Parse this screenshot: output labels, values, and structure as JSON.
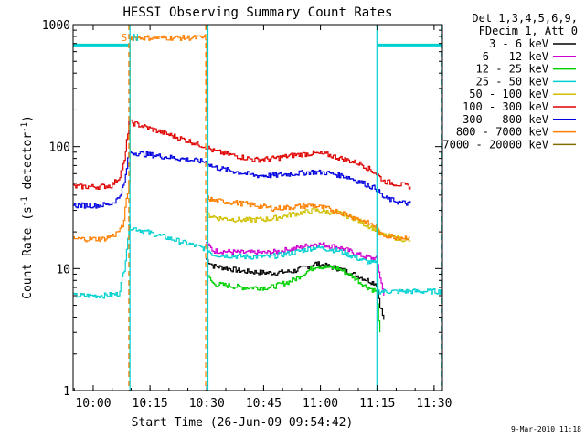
{
  "chart_data": {
    "type": "line",
    "title": "HESSI Observing Summary Count Rates",
    "xlabel": "Start Time (26-Jun-09 09:54:42)",
    "ylabel": "Count Rate (s-1 detector-1)",
    "ylabel_parts": {
      "main": "Count Rate (s",
      "sup1": "-1",
      "mid": " detector",
      "sup2": "-1",
      "end": ")"
    },
    "x_units": "minutes after 09:54:42",
    "xlim": [
      0,
      97.5
    ],
    "ylim": [
      1,
      1000
    ],
    "yscale": "log",
    "x_ticks": [
      {
        "label": "10:00",
        "value": 5.3
      },
      {
        "label": "10:15",
        "value": 20.3
      },
      {
        "label": "10:30",
        "value": 35.3
      },
      {
        "label": "10:45",
        "value": 50.3
      },
      {
        "label": "11:00",
        "value": 65.3
      },
      {
        "label": "11:15",
        "value": 80.3
      },
      {
        "label": "11:30",
        "value": 95.3
      }
    ],
    "y_ticks": [
      {
        "label": "1",
        "value": 1
      },
      {
        "label": "10",
        "value": 10
      },
      {
        "label": "100",
        "value": 100
      },
      {
        "label": "1000",
        "value": 1000
      }
    ],
    "legend_header": [
      "Det 1,3,4,5,6,9,",
      "FDecim 1, Att 0"
    ],
    "legend_position": "right",
    "series": [
      {
        "name": "3 - 6 keV",
        "color": "#000000",
        "x": [
          35,
          37,
          45,
          52,
          58,
          64,
          70,
          74,
          77,
          80,
          81,
          82
        ],
        "y": [
          12,
          10.5,
          9.5,
          9.2,
          9.5,
          11,
          10,
          9,
          8.2,
          7.5,
          5,
          3.8
        ]
      },
      {
        "name": "6 - 12 keV",
        "color": "#d000d0",
        "x": [
          35,
          37,
          45,
          52,
          58,
          64,
          70,
          74,
          77,
          80,
          82
        ],
        "y": [
          16,
          14,
          13.5,
          13.5,
          14.5,
          16,
          15,
          13.5,
          12.5,
          12,
          6
        ]
      },
      {
        "name": "12 - 25 keV",
        "color": "#00d000",
        "x": [
          35,
          37,
          45,
          52,
          58,
          64,
          70,
          74,
          77,
          80,
          81
        ],
        "y": [
          9,
          7.5,
          7,
          7,
          8,
          10.5,
          10,
          8.5,
          7.2,
          6.5,
          3
        ]
      },
      {
        "name": "25 - 50 keV",
        "color": "#00d0d0",
        "x": [
          0,
          8,
          12,
          13.5,
          14.7,
          35,
          37,
          45,
          52,
          58,
          64,
          70,
          74,
          77,
          80,
          80.5,
          89,
          97.5
        ],
        "y": [
          6,
          6,
          6.2,
          10,
          22,
          14.5,
          13,
          12.5,
          12.5,
          13.5,
          15,
          14,
          12.5,
          11.5,
          11,
          6.5,
          6.5,
          6.5
        ]
      },
      {
        "name": "50 - 100 keV",
        "color": "#d0c000",
        "x": [
          35,
          38,
          45,
          52,
          58,
          64,
          70,
          74,
          77,
          80,
          81,
          89
        ],
        "y": [
          28,
          26,
          25,
          25.5,
          28,
          30,
          28.5,
          26,
          23,
          21,
          19,
          17
        ]
      },
      {
        "name": "100 - 300 keV",
        "color": "#e00000",
        "x": [
          0,
          7,
          10,
          12,
          13.5,
          14.7,
          35,
          37,
          42,
          48,
          53,
          58,
          63,
          67,
          72,
          76,
          80,
          82,
          86,
          89
        ],
        "y": [
          47,
          47,
          48,
          55,
          75,
          160,
          100,
          92,
          85,
          78,
          80,
          85,
          88,
          86,
          78,
          72,
          60,
          52,
          49,
          47
        ]
      },
      {
        "name": "300 - 800 keV",
        "color": "#0000e0",
        "x": [
          0,
          7,
          10,
          12,
          13.5,
          14.7,
          35,
          37,
          42,
          48,
          53,
          58,
          63,
          67,
          72,
          76,
          80,
          82,
          86,
          89
        ],
        "y": [
          33,
          33,
          34,
          38,
          50,
          90,
          75,
          68,
          63,
          58,
          58,
          60,
          62,
          61,
          57,
          51,
          45,
          38,
          35,
          34
        ]
      },
      {
        "name": "800 - 7000 keV",
        "color": "#ff7f00",
        "x": [
          0,
          8,
          11,
          13,
          14.7,
          15,
          35,
          35.5,
          37,
          42,
          48,
          53,
          58,
          63,
          67,
          72,
          76,
          80,
          81,
          86,
          89
        ],
        "y": [
          17.5,
          17.5,
          19,
          22,
          50,
          780,
          780,
          38,
          36,
          35,
          33,
          31,
          32,
          33,
          31,
          28,
          25,
          22,
          19,
          18,
          18
        ]
      },
      {
        "name": "7000 - 20000 keV",
        "color": "#807000",
        "x": [],
        "y": []
      }
    ],
    "annotations": [
      {
        "text": "S",
        "color": "#ff7f00",
        "x": 13.5
      },
      {
        "text": "N",
        "color": "#00d0d0",
        "x": 16.5
      }
    ],
    "markers": [
      {
        "type": "solid",
        "color": "#00d0d0",
        "x": 15.0
      },
      {
        "type": "dashed",
        "color": "#ff7f00",
        "x": 14.7
      },
      {
        "type": "dashed",
        "color": "#ff7f00",
        "x": 35.0
      },
      {
        "type": "solid",
        "color": "#00d0d0",
        "x": 35.6
      },
      {
        "type": "solid",
        "color": "#00d0d0",
        "x": 80.2
      },
      {
        "type": "dashed",
        "color": "#00d0d0",
        "x": 97.2
      }
    ],
    "saa_bars": [
      {
        "color": "#00d0d0",
        "x0": 0,
        "x1": 14.6,
        "y": 680
      },
      {
        "color": "#00d0d0",
        "x0": 80.2,
        "x1": 97.5,
        "y": 680
      }
    ],
    "footer_date": "9-Mar-2010 11:18"
  }
}
